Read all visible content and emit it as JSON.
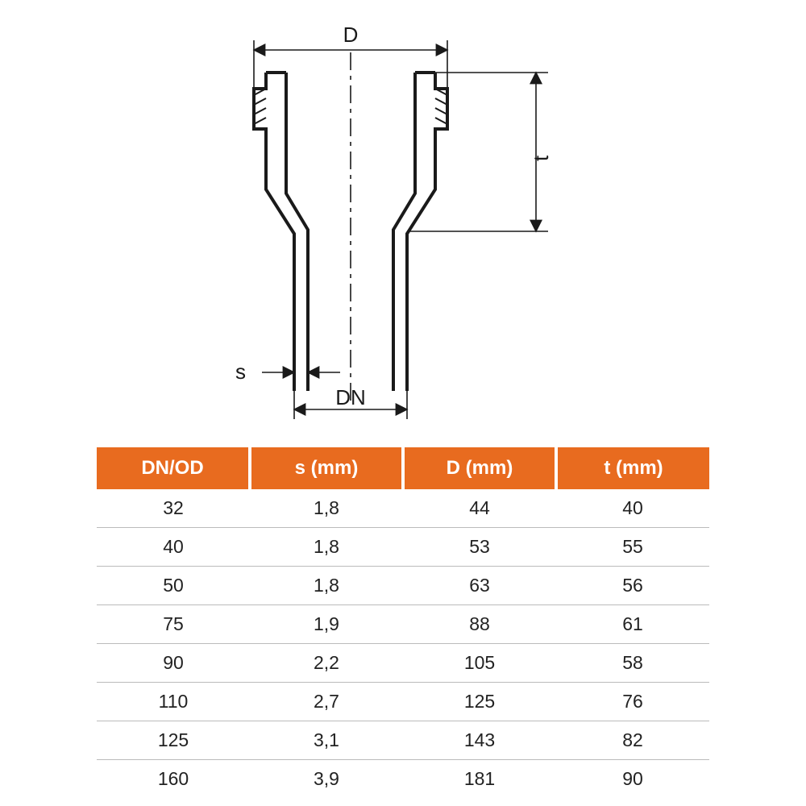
{
  "diagram": {
    "labels": {
      "D": "D",
      "t": "t",
      "s": "s",
      "DN": "DN"
    },
    "stroke_color": "#1a1a1a",
    "outline_stroke_width": 4,
    "dimension_stroke_width": 1.6,
    "centerline_dash": "18 6 4 6",
    "hidden_dash": "10 7"
  },
  "table": {
    "header_bg": "#e86b1f",
    "header_fg": "#ffffff",
    "row_border": "#bbbbbb",
    "cell_fg": "#222222",
    "columns": [
      "DN/OD",
      "s (mm)",
      "D (mm)",
      "t (mm)"
    ],
    "rows": [
      [
        "32",
        "1,8",
        "44",
        "40"
      ],
      [
        "40",
        "1,8",
        "53",
        "55"
      ],
      [
        "50",
        "1,8",
        "63",
        "56"
      ],
      [
        "75",
        "1,9",
        "88",
        "61"
      ],
      [
        "90",
        "2,2",
        "105",
        "58"
      ],
      [
        "110",
        "2,7",
        "125",
        "76"
      ],
      [
        "125",
        "3,1",
        "143",
        "82"
      ],
      [
        "160",
        "3,9",
        "181",
        "90"
      ]
    ]
  }
}
